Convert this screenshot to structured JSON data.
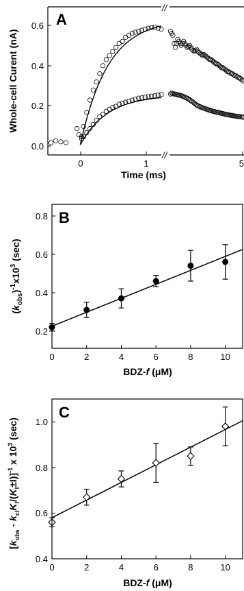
{
  "chart_data": [
    {
      "type": "scatter",
      "panel": "A",
      "xlabel": "Time (ms)",
      "ylabel": "Whole-cell Curent (nA)",
      "ylim": [
        -0.05,
        0.68
      ],
      "x_segments": [
        {
          "xlim": [
            -0.5,
            1.25
          ],
          "ticks": [
            0,
            1
          ],
          "tick_labels": [
            "0",
            "1"
          ]
        },
        {
          "xlim": [
            1.25,
            5.0
          ],
          "ticks": [
            5
          ],
          "tick_labels": [
            "5"
          ]
        }
      ],
      "y_ticks": [
        0.0,
        0.2,
        0.4,
        0.6
      ],
      "y_tick_labels": [
        "0.0",
        "0.2",
        "0.4",
        "0.6"
      ],
      "axis_break": true,
      "series": [
        {
          "marker": "open-circle",
          "fit": {
            "form": "single-exponential rise",
            "amplitude": 0.62,
            "tau_ms": 0.43,
            "x_range": [
              0,
              1.25
            ]
          },
          "x": [
            -0.45,
            -0.38,
            -0.3,
            -0.22,
            -0.05,
            -0.02,
            0.02,
            0.05,
            0.1,
            0.15,
            0.2,
            0.25,
            0.3,
            0.35,
            0.4,
            0.45,
            0.5,
            0.55,
            0.6,
            0.65,
            0.7,
            0.75,
            0.8,
            0.85,
            0.9,
            0.95,
            1.0,
            1.05,
            1.1,
            1.15,
            1.2,
            1.25,
            1.3,
            1.36,
            1.42,
            1.48,
            1.54,
            1.6,
            1.66,
            1.72,
            1.78,
            1.84,
            1.9,
            1.96,
            2.02,
            2.08,
            2.14,
            2.2,
            2.26,
            2.32,
            2.38,
            2.44,
            2.5,
            2.56,
            2.62,
            2.68,
            2.74,
            2.8,
            2.86,
            2.92,
            2.98,
            3.04,
            3.1,
            3.16,
            3.22,
            3.28,
            3.34,
            3.4,
            3.46,
            3.52,
            3.58,
            3.64,
            3.7,
            3.76,
            3.82,
            3.88,
            3.94,
            4.0,
            4.06,
            4.12,
            4.18,
            4.24,
            4.3,
            4.36,
            4.42,
            4.48,
            4.54,
            4.6,
            4.66,
            4.72,
            4.78,
            4.84,
            4.9,
            4.96
          ],
          "y": [
            0.01,
            0.02,
            0.015,
            0.01,
            0.08,
            0.05,
            0.04,
            0.09,
            0.16,
            0.22,
            0.27,
            0.31,
            0.35,
            0.39,
            0.42,
            0.44,
            0.46,
            0.48,
            0.5,
            0.51,
            0.53,
            0.54,
            0.55,
            0.555,
            0.56,
            0.565,
            0.57,
            0.575,
            0.578,
            0.58,
            0.575,
            0.57,
            0.56,
            0.55,
            0.54,
            0.5,
            0.48,
            0.5,
            0.52,
            0.51,
            0.5,
            0.49,
            0.5,
            0.51,
            0.5,
            0.49,
            0.48,
            0.485,
            0.49,
            0.48,
            0.47,
            0.465,
            0.46,
            0.465,
            0.47,
            0.46,
            0.455,
            0.45,
            0.445,
            0.44,
            0.445,
            0.44,
            0.435,
            0.43,
            0.425,
            0.42,
            0.42,
            0.415,
            0.41,
            0.405,
            0.4,
            0.4,
            0.395,
            0.39,
            0.385,
            0.38,
            0.38,
            0.375,
            0.37,
            0.365,
            0.36,
            0.36,
            0.355,
            0.35,
            0.35,
            0.345,
            0.34,
            0.34,
            0.335,
            0.33,
            0.33,
            0.325,
            0.32,
            0.315
          ]
        },
        {
          "marker": "open-circle",
          "fit": {
            "form": "single-exponential rise",
            "amplitude": 0.245,
            "tau_ms": 0.42,
            "x_range": [
              0,
              1.25
            ]
          },
          "x": [
            0.02,
            0.05,
            0.1,
            0.15,
            0.2,
            0.25,
            0.3,
            0.35,
            0.4,
            0.45,
            0.5,
            0.55,
            0.6,
            0.65,
            0.7,
            0.75,
            0.8,
            0.85,
            0.9,
            0.95,
            1.0,
            1.05,
            1.1,
            1.15,
            1.2,
            1.25,
            1.3,
            1.36,
            1.42,
            1.48,
            1.54,
            1.6,
            1.66,
            1.72,
            1.78,
            1.84,
            1.9,
            1.96,
            2.02,
            2.08,
            2.14,
            2.2,
            2.26,
            2.32,
            2.38,
            2.44,
            2.5,
            2.56,
            2.62,
            2.68,
            2.74,
            2.8,
            2.86,
            2.92,
            2.98,
            3.04,
            3.1,
            3.16,
            3.22,
            3.28,
            3.34,
            3.4,
            3.46,
            3.52,
            3.58,
            3.64,
            3.7,
            3.76,
            3.82,
            3.88,
            3.94,
            4.0,
            4.06,
            4.12,
            4.18,
            4.24,
            4.3,
            4.36,
            4.42,
            4.48,
            4.54,
            4.6,
            4.66,
            4.72,
            4.78,
            4.84,
            4.9,
            4.96
          ],
          "y": [
            0.03,
            0.04,
            0.06,
            0.08,
            0.1,
            0.12,
            0.14,
            0.15,
            0.165,
            0.175,
            0.185,
            0.19,
            0.2,
            0.205,
            0.21,
            0.215,
            0.22,
            0.225,
            0.23,
            0.232,
            0.235,
            0.238,
            0.24,
            0.242,
            0.245,
            0.248,
            0.25,
            0.255,
            0.252,
            0.25,
            0.25,
            0.248,
            0.246,
            0.245,
            0.244,
            0.242,
            0.24,
            0.238,
            0.235,
            0.232,
            0.23,
            0.226,
            0.222,
            0.218,
            0.214,
            0.21,
            0.205,
            0.2,
            0.196,
            0.192,
            0.19,
            0.187,
            0.185,
            0.182,
            0.18,
            0.178,
            0.176,
            0.174,
            0.172,
            0.17,
            0.168,
            0.166,
            0.165,
            0.164,
            0.162,
            0.16,
            0.16,
            0.158,
            0.156,
            0.155,
            0.154,
            0.152,
            0.15,
            0.15,
            0.148,
            0.147,
            0.146,
            0.145,
            0.144,
            0.143,
            0.142,
            0.141,
            0.14,
            0.14,
            0.139,
            0.138,
            0.137,
            0.136
          ]
        }
      ]
    },
    {
      "type": "scatter",
      "panel": "B",
      "xlabel": "BDZ-f (μM)",
      "ylabel": "(kobs)-1x103 (sec)",
      "xlim": [
        0,
        11
      ],
      "ylim": [
        0.15,
        0.9
      ],
      "x_ticks": [
        0,
        2,
        4,
        6,
        8,
        10
      ],
      "y_ticks": [
        0.2,
        0.4,
        0.6,
        0.8
      ],
      "y_tick_labels": [
        "0.2",
        "0.4",
        "0.6",
        "0.8"
      ],
      "series": [
        {
          "marker": "filled-circle",
          "x": [
            0,
            2,
            4,
            6,
            8,
            10
          ],
          "y": [
            0.26,
            0.35,
            0.41,
            0.5,
            0.58,
            0.6
          ],
          "error": [
            0.02,
            0.04,
            0.05,
            0.03,
            0.08,
            0.09
          ]
        }
      ],
      "fit_line": {
        "x": [
          0,
          11
        ],
        "y": [
          0.265,
          0.665
        ]
      }
    },
    {
      "type": "scatter",
      "panel": "C",
      "xlabel": "BDZ-f (μM)",
      "ylabel": "[kobs - kcl KI/(KI±I)]-1 x 103 (sec)",
      "xlim": [
        0,
        11
      ],
      "ylim": [
        0.4,
        1.1
      ],
      "x_ticks": [
        0,
        2,
        4,
        6,
        8,
        10
      ],
      "y_ticks": [
        0.4,
        0.6,
        0.8,
        1.0
      ],
      "y_tick_labels": [
        "0.4",
        "0.6",
        "0.8",
        "1.0"
      ],
      "series": [
        {
          "marker": "open-diamond",
          "x": [
            0,
            2,
            4,
            6,
            8,
            10
          ],
          "y": [
            0.56,
            0.67,
            0.75,
            0.82,
            0.85,
            0.98
          ],
          "error": [
            0.02,
            0.035,
            0.035,
            0.085,
            0.04,
            0.085
          ]
        }
      ],
      "fit_line": {
        "x": [
          0,
          11
        ],
        "y": [
          0.58,
          1.005
        ]
      }
    }
  ],
  "labels": {
    "panel_a": {
      "letter": "A",
      "ylabel": "Whole-cell Curent (nA)",
      "xlabel": "Time (ms)",
      "y_ticks": [
        "0.0",
        "0.2",
        "0.4",
        "0.6"
      ],
      "x_ticks": [
        "0",
        "1",
        "5"
      ],
      "break_mark": "//"
    },
    "panel_b": {
      "letter": "B",
      "xlabel_main": "BDZ-",
      "xlabel_italic": "f",
      "xlabel_unit": " (μM)",
      "ylabel": {
        "open": "(",
        "k": "k",
        "sub": "obs",
        "close": ")",
        "sup1": "-1",
        "x10": "x10",
        "sup2": "3",
        "unit": " (sec)"
      },
      "y_ticks": [
        "0.2",
        "0.4",
        "0.6",
        "0.8"
      ],
      "x_ticks": [
        "0",
        "2",
        "4",
        "6",
        "8",
        "10"
      ]
    },
    "panel_c": {
      "letter": "C",
      "xlabel_main": "BDZ-",
      "xlabel_italic": "f",
      "xlabel_unit": " (μM)",
      "ylabel": {
        "open": "[",
        "k1": "k",
        "sub1": "obs",
        "minus": " - ",
        "k2": "k",
        "sub2": "cl",
        "K1": "K",
        "sub3": "I",
        "slash": "/(",
        "K2": "K",
        "sub4": "I",
        "pm": "±I)]",
        "sup1": "-1",
        "x10": " x 10",
        "sup2": "3",
        "unit": " (sec)"
      },
      "y_ticks": [
        "0.4",
        "0.6",
        "0.8",
        "1.0"
      ],
      "x_ticks": [
        "0",
        "2",
        "4",
        "6",
        "8",
        "10"
      ]
    }
  }
}
